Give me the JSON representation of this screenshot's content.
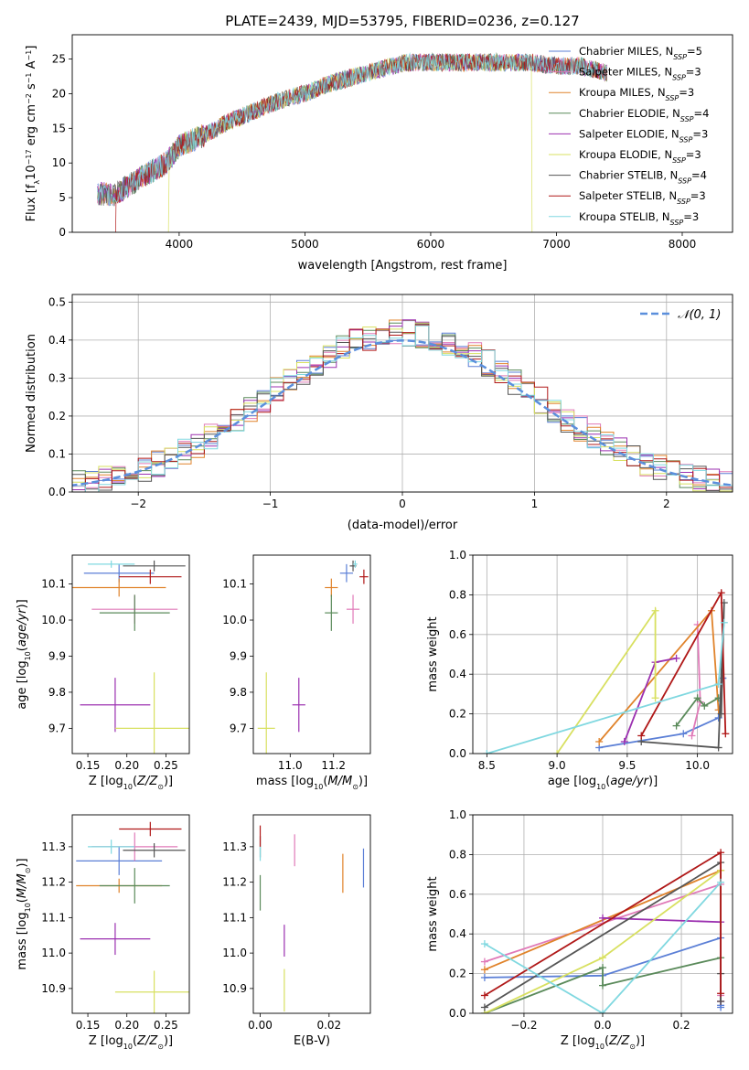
{
  "figure_title": "PLATE=2439, MJD=53795, FIBERID=0236, z=0.127",
  "colors": {
    "Chabrier MILES": "#5b7fd6",
    "Salpeter MILES": "#e07ab8",
    "Kroupa MILES": "#e0832b",
    "Chabrier ELODIE": "#5a8a5a",
    "Salpeter ELODIE": "#9b30b0",
    "Kroupa ELODIE": "#d8e060",
    "Chabrier STELIB": "#555555",
    "Salpeter STELIB": "#b01818",
    "Kroupa STELIB": "#80d8e0"
  },
  "models": [
    {
      "key": "Chabrier MILES",
      "name": "Chabrier MILES",
      "n": "5"
    },
    {
      "key": "Salpeter MILES",
      "name": "Salpeter MILES",
      "n": "3"
    },
    {
      "key": "Kroupa MILES",
      "name": "Kroupa MILES",
      "n": "3"
    },
    {
      "key": "Chabrier ELODIE",
      "name": "Chabrier ELODIE",
      "n": "4"
    },
    {
      "key": "Salpeter ELODIE",
      "name": "Salpeter ELODIE",
      "n": "3"
    },
    {
      "key": "Kroupa ELODIE",
      "name": "Kroupa ELODIE",
      "n": "3"
    },
    {
      "key": "Chabrier STELIB",
      "name": "Chabrier STELIB",
      "n": "4"
    },
    {
      "key": "Salpeter STELIB",
      "name": "Salpeter STELIB",
      "n": "3"
    },
    {
      "key": "Kroupa STELIB",
      "name": "Kroupa STELIB",
      "n": "3"
    }
  ],
  "chart_data": [
    {
      "id": "spectrum",
      "type": "line",
      "xlabel": "wavelength [Angstrom, rest frame]",
      "ylabel": "Flux [f_λ 10^-17 erg cm^-2 s^-1 A^-1]",
      "xlim": [
        3150,
        8400
      ],
      "ylim": [
        0,
        28.5
      ],
      "xticks": [
        4000,
        5000,
        6000,
        7000,
        8000
      ],
      "yticks": [
        0,
        5,
        10,
        15,
        20,
        25
      ],
      "envelope": [
        [
          3350,
          5.5
        ],
        [
          3500,
          5.5
        ],
        [
          3700,
          8
        ],
        [
          3900,
          10
        ],
        [
          4000,
          12.5
        ],
        [
          4200,
          14
        ],
        [
          4400,
          16
        ],
        [
          4600,
          17.5
        ],
        [
          4800,
          19
        ],
        [
          5000,
          20
        ],
        [
          5200,
          21.5
        ],
        [
          5400,
          22.5
        ],
        [
          5600,
          23.5
        ],
        [
          5800,
          24.5
        ],
        [
          6000,
          24.5
        ],
        [
          6200,
          24.5
        ],
        [
          6400,
          24.5
        ],
        [
          6600,
          24.5
        ],
        [
          6800,
          24.5
        ],
        [
          7000,
          24
        ],
        [
          7200,
          24
        ],
        [
          7400,
          23
        ]
      ],
      "dropouts": [
        {
          "key": "Salpeter STELIB",
          "range": [
            3500,
            7430
          ]
        },
        {
          "key": "Kroupa ELODIE",
          "range": [
            3920,
            6800
          ]
        }
      ],
      "legend_position": "upper right",
      "grid": false
    },
    {
      "id": "residuals",
      "type": "histogram",
      "xlabel": "(data-model)/error",
      "ylabel": "Normed distribution",
      "xlim": [
        -2.5,
        2.5
      ],
      "ylim": [
        0,
        0.52
      ],
      "xticks": [
        -2,
        -1,
        0,
        1,
        2
      ],
      "yticks": [
        0,
        0.1,
        0.2,
        0.3,
        0.4,
        0.5
      ],
      "bin_width": 0.1,
      "reference_curve": "N(0,1)",
      "reference_label": "𝒩(0, 1)",
      "legend_position": "upper right",
      "grid": true
    },
    {
      "id": "age_vs_Z",
      "type": "scatter",
      "xlabel": "Z [log10(Z/Z☉)]",
      "ylabel": "age [log10(age/yr)]",
      "xlim": [
        0.13,
        0.28
      ],
      "ylim": [
        9.63,
        10.18
      ],
      "xticks": [
        0.15,
        0.2,
        0.25
      ],
      "yticks": [
        9.7,
        9.8,
        9.9,
        10.0,
        10.1
      ],
      "points": [
        {
          "key": "Chabrier MILES",
          "x": 0.19,
          "y": 10.13,
          "xerr": 0.045,
          "yerr": 0.025
        },
        {
          "key": "Salpeter MILES",
          "x": 0.21,
          "y": 10.03,
          "xerr": 0.055,
          "yerr": 0.04
        },
        {
          "key": "Kroupa MILES",
          "x": 0.19,
          "y": 10.09,
          "xerr": 0.06,
          "yerr": 0.025
        },
        {
          "key": "Chabrier ELODIE",
          "x": 0.21,
          "y": 10.02,
          "xerr": 0.045,
          "yerr": 0.05
        },
        {
          "key": "Salpeter ELODIE",
          "x": 0.185,
          "y": 9.765,
          "xerr": 0.045,
          "yerr": 0.075
        },
        {
          "key": "Kroupa ELODIE",
          "x": 0.235,
          "y": 9.7,
          "xerr": 0.05,
          "yerr": 0.155
        },
        {
          "key": "Chabrier STELIB",
          "x": 0.235,
          "y": 10.15,
          "xerr": 0.04,
          "yerr": 0.015
        },
        {
          "key": "Salpeter STELIB",
          "x": 0.23,
          "y": 10.12,
          "xerr": 0.04,
          "yerr": 0.02
        },
        {
          "key": "Kroupa STELIB",
          "x": 0.18,
          "y": 10.155,
          "xerr": 0.03,
          "yerr": 0.01
        }
      ]
    },
    {
      "id": "age_vs_mass",
      "type": "scatter",
      "xlabel": "mass [log10(M/M☉)]",
      "ylabel": "",
      "xlim": [
        10.83,
        11.37
      ],
      "ylim": [
        9.63,
        10.18
      ],
      "xticks": [
        11.0,
        11.2
      ],
      "yticks": [
        9.7,
        9.8,
        9.9,
        10.0,
        10.1
      ],
      "points": [
        {
          "key": "Chabrier MILES",
          "x": 11.26,
          "y": 10.13,
          "xerr": 0.03,
          "yerr": 0.025
        },
        {
          "key": "Salpeter MILES",
          "x": 11.29,
          "y": 10.03,
          "xerr": 0.03,
          "yerr": 0.04
        },
        {
          "key": "Kroupa MILES",
          "x": 11.19,
          "y": 10.09,
          "xerr": 0.03,
          "yerr": 0.025
        },
        {
          "key": "Chabrier ELODIE",
          "x": 11.19,
          "y": 10.02,
          "xerr": 0.03,
          "yerr": 0.05
        },
        {
          "key": "Salpeter ELODIE",
          "x": 11.04,
          "y": 9.765,
          "xerr": 0.03,
          "yerr": 0.075
        },
        {
          "key": "Kroupa ELODIE",
          "x": 10.89,
          "y": 9.7,
          "xerr": 0.04,
          "yerr": 0.155
        },
        {
          "key": "Chabrier STELIB",
          "x": 11.29,
          "y": 10.15,
          "xerr": 0.015,
          "yerr": 0.015
        },
        {
          "key": "Salpeter STELIB",
          "x": 11.34,
          "y": 10.12,
          "xerr": 0.02,
          "yerr": 0.02
        },
        {
          "key": "Kroupa STELIB",
          "x": 11.3,
          "y": 10.155,
          "xerr": 0.01,
          "yerr": 0.01
        }
      ]
    },
    {
      "id": "mass_weight_vs_age",
      "type": "line",
      "xlabel": "age [log10(age/yr)]",
      "ylabel": "mass weight",
      "xlim": [
        8.4,
        10.25
      ],
      "ylim": [
        0,
        1.0
      ],
      "xticks": [
        8.5,
        9.0,
        9.5,
        10.0
      ],
      "yticks": [
        0.0,
        0.2,
        0.4,
        0.6,
        0.8,
        1.0
      ],
      "grid": true,
      "series": [
        {
          "key": "Chabrier MILES",
          "x": [
            9.3,
            9.9,
            10.15,
            10.18,
            10.18
          ],
          "y": [
            0.03,
            0.1,
            0.18,
            0.38,
            0.38
          ]
        },
        {
          "key": "Salpeter MILES",
          "x": [
            10.0,
            10.02,
            9.96
          ],
          "y": [
            0.65,
            0.26,
            0.09
          ]
        },
        {
          "key": "Kroupa MILES",
          "x": [
            9.3,
            10.1,
            10.15
          ],
          "y": [
            0.06,
            0.72,
            0.22
          ]
        },
        {
          "key": "Chabrier ELODIE",
          "x": [
            9.85,
            10.0,
            10.05,
            10.15
          ],
          "y": [
            0.14,
            0.28,
            0.24,
            0.28
          ]
        },
        {
          "key": "Salpeter ELODIE",
          "x": [
            9.48,
            9.7,
            9.85
          ],
          "y": [
            0.06,
            0.46,
            0.48
          ]
        },
        {
          "key": "Kroupa ELODIE",
          "x": [
            9.0,
            9.7,
            9.7
          ],
          "y": [
            0.0,
            0.72,
            0.28
          ]
        },
        {
          "key": "Chabrier STELIB",
          "x": [
            9.6,
            10.15,
            10.19,
            10.17
          ],
          "y": [
            0.06,
            0.03,
            0.76,
            0.2
          ]
        },
        {
          "key": "Salpeter STELIB",
          "x": [
            9.6,
            10.17,
            10.2
          ],
          "y": [
            0.09,
            0.81,
            0.1
          ]
        },
        {
          "key": "Kroupa STELIB",
          "x": [
            8.5,
            10.15,
            10.19
          ],
          "y": [
            0.0,
            0.35,
            0.66
          ]
        }
      ]
    },
    {
      "id": "mass_vs_Z",
      "type": "scatter",
      "xlabel": "Z [log10(Z/Z☉)]",
      "ylabel": "mass [log10(M/M☉)]",
      "xlim": [
        0.13,
        0.28
      ],
      "ylim": [
        10.83,
        11.39
      ],
      "xticks": [
        0.15,
        0.2,
        0.25
      ],
      "yticks": [
        10.9,
        11.0,
        11.1,
        11.2,
        11.3
      ],
      "points": [
        {
          "key": "Chabrier MILES",
          "x": 0.19,
          "y": 11.26,
          "xerr": 0.055,
          "yerr": 0.04
        },
        {
          "key": "Salpeter MILES",
          "x": 0.21,
          "y": 11.3,
          "xerr": 0.055,
          "yerr": 0.04
        },
        {
          "key": "Kroupa MILES",
          "x": 0.19,
          "y": 11.19,
          "xerr": 0.055,
          "yerr": 0.02
        },
        {
          "key": "Chabrier ELODIE",
          "x": 0.21,
          "y": 11.19,
          "xerr": 0.045,
          "yerr": 0.05
        },
        {
          "key": "Salpeter ELODIE",
          "x": 0.185,
          "y": 11.04,
          "xerr": 0.045,
          "yerr": 0.045
        },
        {
          "key": "Kroupa ELODIE",
          "x": 0.235,
          "y": 10.89,
          "xerr": 0.05,
          "yerr": 0.06
        },
        {
          "key": "Chabrier STELIB",
          "x": 0.235,
          "y": 11.29,
          "xerr": 0.04,
          "yerr": 0.02
        },
        {
          "key": "Salpeter STELIB",
          "x": 0.23,
          "y": 11.35,
          "xerr": 0.04,
          "yerr": 0.02
        },
        {
          "key": "Kroupa STELIB",
          "x": 0.18,
          "y": 11.3,
          "xerr": 0.03,
          "yerr": 0.02
        }
      ]
    },
    {
      "id": "mass_vs_ebv",
      "type": "scatter",
      "xlabel": "E(B-V)",
      "ylabel": "",
      "xlim": [
        -0.002,
        0.032
      ],
      "ylim": [
        10.83,
        11.39
      ],
      "xticks": [
        0.0,
        0.02
      ],
      "yticks": [
        10.9,
        11.0,
        11.1,
        11.2,
        11.3
      ],
      "points": [
        {
          "key": "Chabrier MILES",
          "x": 0.03,
          "y": 11.24,
          "xerr": 0,
          "yerr": 0.055
        },
        {
          "key": "Salpeter MILES",
          "x": 0.01,
          "y": 11.29,
          "xerr": 0,
          "yerr": 0.045
        },
        {
          "key": "Kroupa MILES",
          "x": 0.024,
          "y": 11.225,
          "xerr": 0,
          "yerr": 0.055
        },
        {
          "key": "Chabrier ELODIE",
          "x": 0.0,
          "y": 11.17,
          "xerr": 0,
          "yerr": 0.05
        },
        {
          "key": "Salpeter ELODIE",
          "x": 0.007,
          "y": 11.035,
          "xerr": 0,
          "yerr": 0.045
        },
        {
          "key": "Kroupa ELODIE",
          "x": 0.007,
          "y": 10.895,
          "xerr": 0,
          "yerr": 0.06
        },
        {
          "key": "Chabrier STELIB",
          "x": 0.0,
          "y": 11.3,
          "xerr": 0,
          "yerr": 0.03
        },
        {
          "key": "Salpeter STELIB",
          "x": 0.0,
          "y": 11.33,
          "xerr": 0,
          "yerr": 0.03
        },
        {
          "key": "Kroupa STELIB",
          "x": 0.0,
          "y": 11.28,
          "xerr": 0,
          "yerr": 0.02
        }
      ]
    },
    {
      "id": "mass_weight_vs_Z",
      "type": "line",
      "xlabel": "Z [log10(Z/Z☉)]",
      "ylabel": "mass weight",
      "xlim": [
        -0.33,
        0.33
      ],
      "ylim": [
        0,
        1.0
      ],
      "xticks": [
        -0.2,
        0.0,
        0.2
      ],
      "yticks": [
        0.0,
        0.2,
        0.4,
        0.6,
        0.8,
        1.0
      ],
      "grid": true,
      "series": [
        {
          "key": "Chabrier MILES",
          "x": [
            -0.3,
            0.0,
            0.3,
            0.3,
            0.3
          ],
          "y": [
            0.18,
            0.19,
            0.38,
            0.04,
            0.03
          ]
        },
        {
          "key": "Salpeter MILES",
          "x": [
            -0.3,
            0.3,
            0.3
          ],
          "y": [
            0.26,
            0.65,
            0.09
          ]
        },
        {
          "key": "Kroupa MILES",
          "x": [
            -0.3,
            0.3,
            0.3
          ],
          "y": [
            0.22,
            0.72,
            0.06
          ]
        },
        {
          "key": "Chabrier ELODIE",
          "x": [
            -0.3,
            0.0,
            0.0,
            0.3
          ],
          "y": [
            0.0,
            0.23,
            0.14,
            0.28
          ]
        },
        {
          "key": "Salpeter ELODIE",
          "x": [
            0.0,
            0.3,
            0.3
          ],
          "y": [
            0.48,
            0.46,
            0.06
          ]
        },
        {
          "key": "Kroupa ELODIE",
          "x": [
            -0.3,
            0.0,
            0.3
          ],
          "y": [
            0.0,
            0.28,
            0.72
          ]
        },
        {
          "key": "Chabrier STELIB",
          "x": [
            -0.3,
            0.3,
            0.3,
            0.3
          ],
          "y": [
            0.03,
            0.76,
            0.2,
            0.06
          ]
        },
        {
          "key": "Salpeter STELIB",
          "x": [
            -0.3,
            0.3,
            0.3
          ],
          "y": [
            0.09,
            0.81,
            0.1
          ]
        },
        {
          "key": "Kroupa STELIB",
          "x": [
            -0.3,
            0.0,
            0.3
          ],
          "y": [
            0.35,
            0.0,
            0.66
          ]
        }
      ]
    }
  ]
}
